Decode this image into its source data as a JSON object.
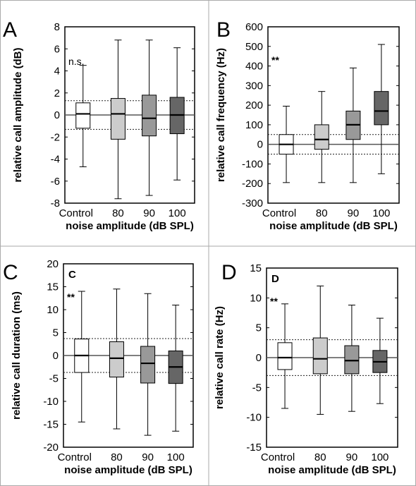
{
  "colors": {
    "panel_border": "#aaaaaa",
    "box_fills": [
      "#ffffff",
      "#cccccc",
      "#999999",
      "#666666"
    ]
  },
  "chart_data": [
    {
      "type": "box",
      "panel_letter": "A",
      "inner_label": "",
      "significance": "n.s.",
      "xlabel": "noise amplitude (dB SPL)",
      "ylabel": "relative call amplitude (dB)",
      "categories": [
        "Control",
        "80",
        "90",
        "100"
      ],
      "ylim": [
        -8,
        8
      ],
      "yticks": [
        -8,
        -6,
        -4,
        -2,
        0,
        2,
        4,
        6,
        8
      ],
      "reference_lines": [
        1.3,
        -1.3
      ],
      "boxes": [
        {
          "min": -4.7,
          "q1": -1.2,
          "median": 0.1,
          "q3": 1.1,
          "max": 4.5
        },
        {
          "min": -7.6,
          "q1": -2.2,
          "median": 0.1,
          "q3": 1.5,
          "max": 6.8
        },
        {
          "min": -7.3,
          "q1": -1.9,
          "median": -0.3,
          "q3": 1.8,
          "max": 6.8
        },
        {
          "min": -5.9,
          "q1": -1.7,
          "median": 0.0,
          "q3": 1.6,
          "max": 6.1
        }
      ]
    },
    {
      "type": "box",
      "panel_letter": "B",
      "inner_label": "",
      "significance": "**",
      "xlabel": "noise amplitude (dB SPL)",
      "ylabel": "relative call frequency (Hz)",
      "categories": [
        "Control",
        "80",
        "90",
        "100"
      ],
      "ylim": [
        -300,
        600
      ],
      "yticks": [
        -300,
        -200,
        -100,
        0,
        100,
        200,
        300,
        400,
        500,
        600
      ],
      "reference_lines": [
        50,
        -50
      ],
      "boxes": [
        {
          "min": -195,
          "q1": -50,
          "median": 0,
          "q3": 50,
          "max": 195
        },
        {
          "min": -195,
          "q1": -25,
          "median": 25,
          "q3": 100,
          "max": 270
        },
        {
          "min": -195,
          "q1": 25,
          "median": 100,
          "q3": 170,
          "max": 390
        },
        {
          "min": -150,
          "q1": 100,
          "median": 170,
          "q3": 270,
          "max": 510
        }
      ]
    },
    {
      "type": "box",
      "panel_letter": "C",
      "inner_label": "C",
      "significance": "**",
      "xlabel": "noise amplitude (dB SPL)",
      "ylabel": "relative call duration (ms)",
      "categories": [
        "Control",
        "80",
        "90",
        "100"
      ],
      "ylim": [
        -20,
        20
      ],
      "yticks": [
        -20,
        -15,
        -10,
        -5,
        0,
        5,
        10,
        15,
        20
      ],
      "reference_lines": [
        3.7,
        -3.7
      ],
      "boxes": [
        {
          "min": -14.5,
          "q1": -3.7,
          "median": 0.0,
          "q3": 3.6,
          "max": 14.0
        },
        {
          "min": -16.0,
          "q1": -4.7,
          "median": -0.6,
          "q3": 3.0,
          "max": 14.5
        },
        {
          "min": -17.4,
          "q1": -6.0,
          "median": -1.7,
          "q3": 2.0,
          "max": 13.5
        },
        {
          "min": -16.5,
          "q1": -6.1,
          "median": -2.5,
          "q3": 1.0,
          "max": 11.0
        }
      ]
    },
    {
      "type": "box",
      "panel_letter": "D",
      "inner_label": "D",
      "significance": "**",
      "xlabel": "noise amplitude (dB SPL)",
      "ylabel": "relative call rate (Hz)",
      "categories": [
        "Control",
        "80",
        "90",
        "100"
      ],
      "ylim": [
        -15,
        15
      ],
      "yticks": [
        -15,
        -10,
        -5,
        0,
        5,
        10,
        15
      ],
      "reference_lines": [
        3.0,
        -3.0
      ],
      "boxes": [
        {
          "min": -8.5,
          "q1": -2.0,
          "median": 0.0,
          "q3": 2.5,
          "max": 9.0
        },
        {
          "min": -9.5,
          "q1": -2.7,
          "median": -0.2,
          "q3": 3.3,
          "max": 12.0
        },
        {
          "min": -9.0,
          "q1": -2.7,
          "median": -0.5,
          "q3": 2.0,
          "max": 8.8
        },
        {
          "min": -7.7,
          "q1": -2.5,
          "median": -0.7,
          "q3": 1.2,
          "max": 6.6
        }
      ]
    }
  ]
}
